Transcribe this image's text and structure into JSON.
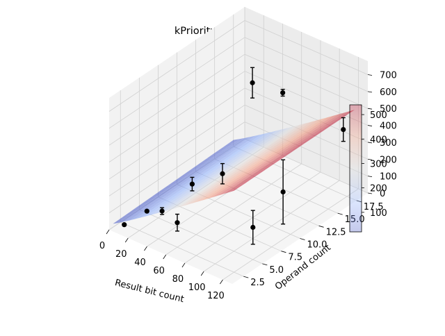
{
  "chart_data": {
    "type": "surface",
    "title": "kPrioritySel",
    "xlabel": "Result bit count",
    "ylabel": "Operand count",
    "zlabel": "",
    "xlim": [
      0,
      130
    ],
    "ylim": [
      1,
      19
    ],
    "zlim": [
      0,
      780
    ],
    "x_ticks": [
      "0",
      "20",
      "40",
      "60",
      "80",
      "100",
      "120"
    ],
    "y_ticks": [
      "2.5",
      "5.0",
      "7.5",
      "10.0",
      "12.5",
      "15.0",
      "17.5"
    ],
    "z_ticks": [
      "0",
      "100",
      "200",
      "300",
      "400",
      "500",
      "600",
      "700"
    ],
    "grid": true,
    "colormap": "coolwarm",
    "colorbar": {
      "ticks": [
        "100",
        "200",
        "300",
        "400",
        "500"
      ],
      "range": [
        20,
        540
      ]
    },
    "surface_fit": {
      "description_free": true,
      "z_at_corners": {
        "x0_y1": 20,
        "x130_y1": 540,
        "x0_y19": 40,
        "x130_y19": 540
      }
    },
    "points": [
      {
        "x": 8,
        "y": 2,
        "z": 20,
        "err": 0
      },
      {
        "x": 16,
        "y": 4,
        "z": 60,
        "err": 0
      },
      {
        "x": 32,
        "y": 4,
        "z": 100,
        "err": 20
      },
      {
        "x": 32,
        "y": 8,
        "z": 140,
        "err": 40
      },
      {
        "x": 64,
        "y": 2,
        "z": 170,
        "err": 50
      },
      {
        "x": 64,
        "y": 8,
        "z": 280,
        "err": 60
      },
      {
        "x": 32,
        "y": 16,
        "z": 500,
        "err": 90
      },
      {
        "x": 64,
        "y": 16,
        "z": 520,
        "err": 20
      },
      {
        "x": 128,
        "y": 4,
        "z": 240,
        "err": 100
      },
      {
        "x": 128,
        "y": 8,
        "z": 330,
        "err": 190
      },
      {
        "x": 128,
        "y": 16,
        "z": 460,
        "err": 70
      }
    ]
  }
}
